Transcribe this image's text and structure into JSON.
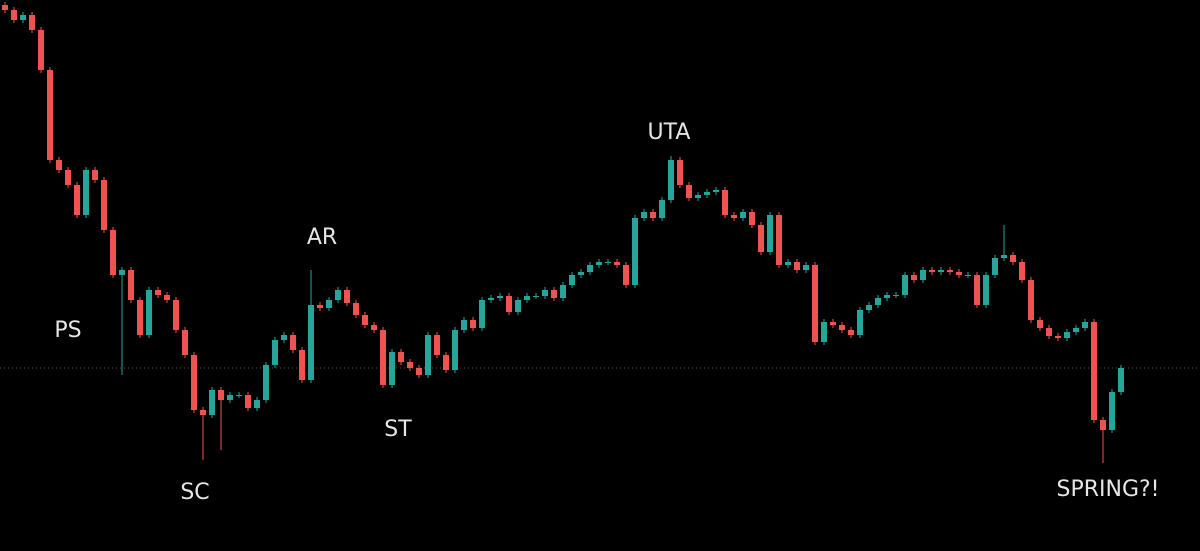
{
  "chart_data": {
    "type": "candlestick",
    "up_color": "#26a69a",
    "down_color": "#ef5350",
    "price_line_color": "#555",
    "ylim": [
      0,
      551
    ],
    "price_line": 183,
    "annotations": [
      "PS",
      "SC",
      "AR",
      "ST",
      "UTA",
      "SPRING?!"
    ],
    "open": [
      546,
      541,
      531,
      536,
      521,
      481,
      391,
      381,
      366,
      336,
      381,
      371,
      321,
      276,
      281,
      251,
      216,
      261,
      256,
      251,
      221,
      196,
      141,
      136,
      161,
      151,
      156,
      156,
      143,
      151,
      186,
      211,
      216,
      201,
      171,
      246,
      243,
      251,
      261,
      248,
      236,
      226,
      221,
      166,
      199,
      189,
      183,
      176,
      216,
      196,
      181,
      221,
      231,
      223,
      251,
      253,
      255,
      239,
      251,
      255,
      255,
      261,
      253,
      266,
      276,
      279,
      286,
      289,
      289,
      286,
      266,
      333,
      339,
      333,
      351,
      391,
      366,
      353,
      356,
      359,
      361,
      336,
      333,
      339,
      326,
      299,
      336,
      286,
      289,
      281,
      286,
      209,
      229,
      226,
      221,
      216,
      241,
      246,
      253,
      256,
      256,
      276,
      271,
      281,
      279,
      281,
      279,
      276,
      276,
      246,
      276,
      293,
      296,
      289,
      271,
      231,
      223,
      215,
      213,
      219,
      223,
      229,
      131,
      121,
      159
    ],
    "high": [
      549,
      544,
      539,
      539,
      524,
      484,
      394,
      384,
      369,
      384,
      384,
      374,
      324,
      284,
      284,
      254,
      264,
      264,
      259,
      254,
      224,
      199,
      144,
      164,
      164,
      159,
      159,
      159,
      154,
      189,
      214,
      219,
      219,
      204,
      281,
      249,
      254,
      264,
      264,
      251,
      239,
      229,
      224,
      202,
      202,
      192,
      186,
      219,
      219,
      199,
      224,
      234,
      234,
      254,
      256,
      258,
      258,
      254,
      258,
      258,
      264,
      264,
      269,
      279,
      282,
      289,
      292,
      292,
      292,
      289,
      336,
      342,
      342,
      354,
      395,
      394,
      369,
      359,
      362,
      364,
      364,
      339,
      342,
      342,
      329,
      339,
      339,
      292,
      292,
      289,
      289,
      232,
      232,
      229,
      224,
      244,
      249,
      256,
      259,
      259,
      279,
      279,
      284,
      284,
      284,
      284,
      282,
      279,
      279,
      279,
      296,
      326,
      299,
      292,
      274,
      234,
      226,
      218,
      222,
      226,
      232,
      232,
      134,
      162,
      186
    ],
    "low": [
      538,
      528,
      528,
      518,
      478,
      388,
      378,
      363,
      333,
      333,
      368,
      318,
      273,
      176,
      248,
      213,
      213,
      253,
      248,
      218,
      193,
      138,
      91,
      133,
      101,
      148,
      153,
      140,
      140,
      148,
      183,
      208,
      198,
      168,
      168,
      240,
      240,
      248,
      245,
      233,
      223,
      218,
      163,
      163,
      186,
      180,
      173,
      173,
      193,
      178,
      178,
      218,
      220,
      220,
      248,
      250,
      236,
      236,
      248,
      252,
      252,
      250,
      250,
      263,
      273,
      276,
      283,
      286,
      283,
      263,
      263,
      330,
      330,
      330,
      348,
      363,
      350,
      350,
      353,
      356,
      333,
      330,
      330,
      323,
      296,
      296,
      283,
      283,
      278,
      278,
      206,
      206,
      223,
      218,
      213,
      213,
      238,
      243,
      250,
      253,
      253,
      268,
      268,
      276,
      276,
      276,
      273,
      273,
      243,
      243,
      273,
      290,
      286,
      268,
      228,
      220,
      212,
      210,
      210,
      216,
      220,
      128,
      88,
      118,
      156
    ],
    "close": [
      541,
      531,
      536,
      521,
      481,
      391,
      381,
      366,
      336,
      381,
      371,
      321,
      276,
      281,
      251,
      216,
      261,
      256,
      251,
      221,
      196,
      141,
      136,
      161,
      151,
      156,
      156,
      143,
      151,
      186,
      211,
      216,
      201,
      171,
      246,
      243,
      251,
      261,
      248,
      236,
      226,
      221,
      166,
      199,
      189,
      183,
      176,
      216,
      196,
      181,
      221,
      231,
      223,
      251,
      253,
      255,
      239,
      251,
      255,
      255,
      261,
      253,
      266,
      276,
      279,
      286,
      289,
      289,
      286,
      266,
      333,
      339,
      333,
      351,
      391,
      366,
      353,
      356,
      359,
      361,
      336,
      333,
      339,
      326,
      299,
      336,
      286,
      289,
      281,
      286,
      209,
      229,
      226,
      221,
      216,
      241,
      246,
      253,
      256,
      256,
      276,
      271,
      281,
      279,
      281,
      279,
      276,
      276,
      246,
      276,
      293,
      296,
      289,
      271,
      231,
      223,
      215,
      213,
      219,
      223,
      229,
      131,
      121,
      159,
      183
    ]
  }
}
